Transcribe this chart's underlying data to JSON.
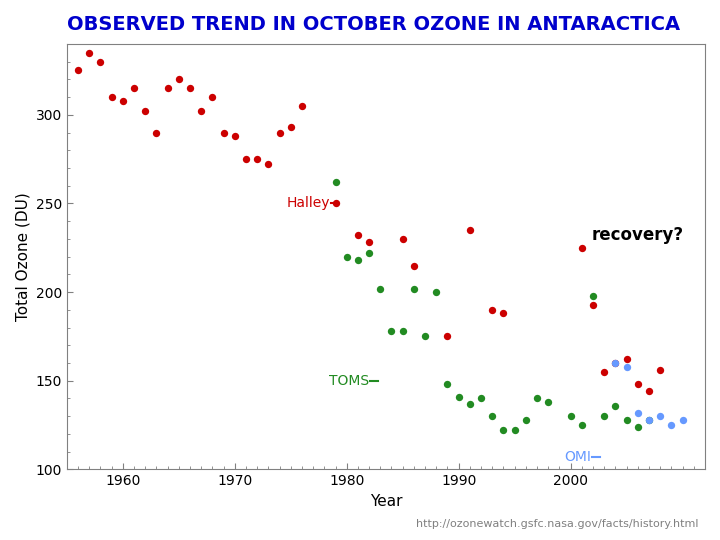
{
  "title": "OBSERVED TREND IN OCTOBER OZONE IN ANTARACTICA",
  "xlabel": "Year",
  "ylabel": "Total Ozone (DU)",
  "url": "http://ozonewatch.gsfc.nasa.gov/facts/history.html",
  "recovery_text": "recovery?",
  "ylim": [
    100,
    340
  ],
  "xlim": [
    1955,
    2012
  ],
  "yticks": [
    100,
    150,
    200,
    250,
    300
  ],
  "xticks": [
    1960,
    1970,
    1980,
    1990,
    2000
  ],
  "title_color": "#0000CC",
  "halley_color": "#CC0000",
  "toms_color": "#228B22",
  "omi_color": "#6699FF",
  "halley_label": "Halley",
  "toms_label": "TOMS",
  "omi_label": "OMI",
  "halley_data": [
    [
      1956,
      325
    ],
    [
      1957,
      335
    ],
    [
      1958,
      330
    ],
    [
      1959,
      310
    ],
    [
      1960,
      308
    ],
    [
      1961,
      315
    ],
    [
      1962,
      302
    ],
    [
      1963,
      290
    ],
    [
      1964,
      315
    ],
    [
      1965,
      320
    ],
    [
      1966,
      315
    ],
    [
      1967,
      302
    ],
    [
      1968,
      310
    ],
    [
      1969,
      290
    ],
    [
      1970,
      288
    ],
    [
      1971,
      275
    ],
    [
      1972,
      275
    ],
    [
      1973,
      272
    ],
    [
      1974,
      290
    ],
    [
      1975,
      293
    ],
    [
      1976,
      305
    ],
    [
      1979,
      250
    ],
    [
      1981,
      232
    ],
    [
      1982,
      228
    ],
    [
      1985,
      230
    ],
    [
      1986,
      215
    ],
    [
      1989,
      175
    ],
    [
      1991,
      235
    ],
    [
      1993,
      190
    ],
    [
      1994,
      188
    ],
    [
      2001,
      225
    ],
    [
      2002,
      193
    ],
    [
      2003,
      155
    ],
    [
      2004,
      160
    ],
    [
      2005,
      162
    ],
    [
      2006,
      148
    ],
    [
      2007,
      144
    ],
    [
      2008,
      156
    ]
  ],
  "toms_data": [
    [
      1979,
      262
    ],
    [
      1980,
      220
    ],
    [
      1981,
      218
    ],
    [
      1982,
      222
    ],
    [
      1983,
      202
    ],
    [
      1984,
      178
    ],
    [
      1985,
      178
    ],
    [
      1986,
      202
    ],
    [
      1987,
      175
    ],
    [
      1988,
      200
    ],
    [
      1989,
      148
    ],
    [
      1990,
      141
    ],
    [
      1991,
      137
    ],
    [
      1992,
      140
    ],
    [
      1993,
      130
    ],
    [
      1994,
      122
    ],
    [
      1995,
      122
    ],
    [
      1996,
      128
    ],
    [
      1997,
      140
    ],
    [
      1998,
      138
    ],
    [
      2000,
      130
    ],
    [
      2001,
      125
    ],
    [
      2002,
      198
    ],
    [
      2003,
      130
    ],
    [
      2004,
      136
    ],
    [
      2005,
      128
    ],
    [
      2006,
      124
    ],
    [
      2007,
      128
    ]
  ],
  "omi_data": [
    [
      2004,
      160
    ],
    [
      2005,
      158
    ],
    [
      2006,
      132
    ],
    [
      2007,
      128
    ],
    [
      2008,
      130
    ],
    [
      2009,
      125
    ],
    [
      2010,
      128
    ]
  ]
}
